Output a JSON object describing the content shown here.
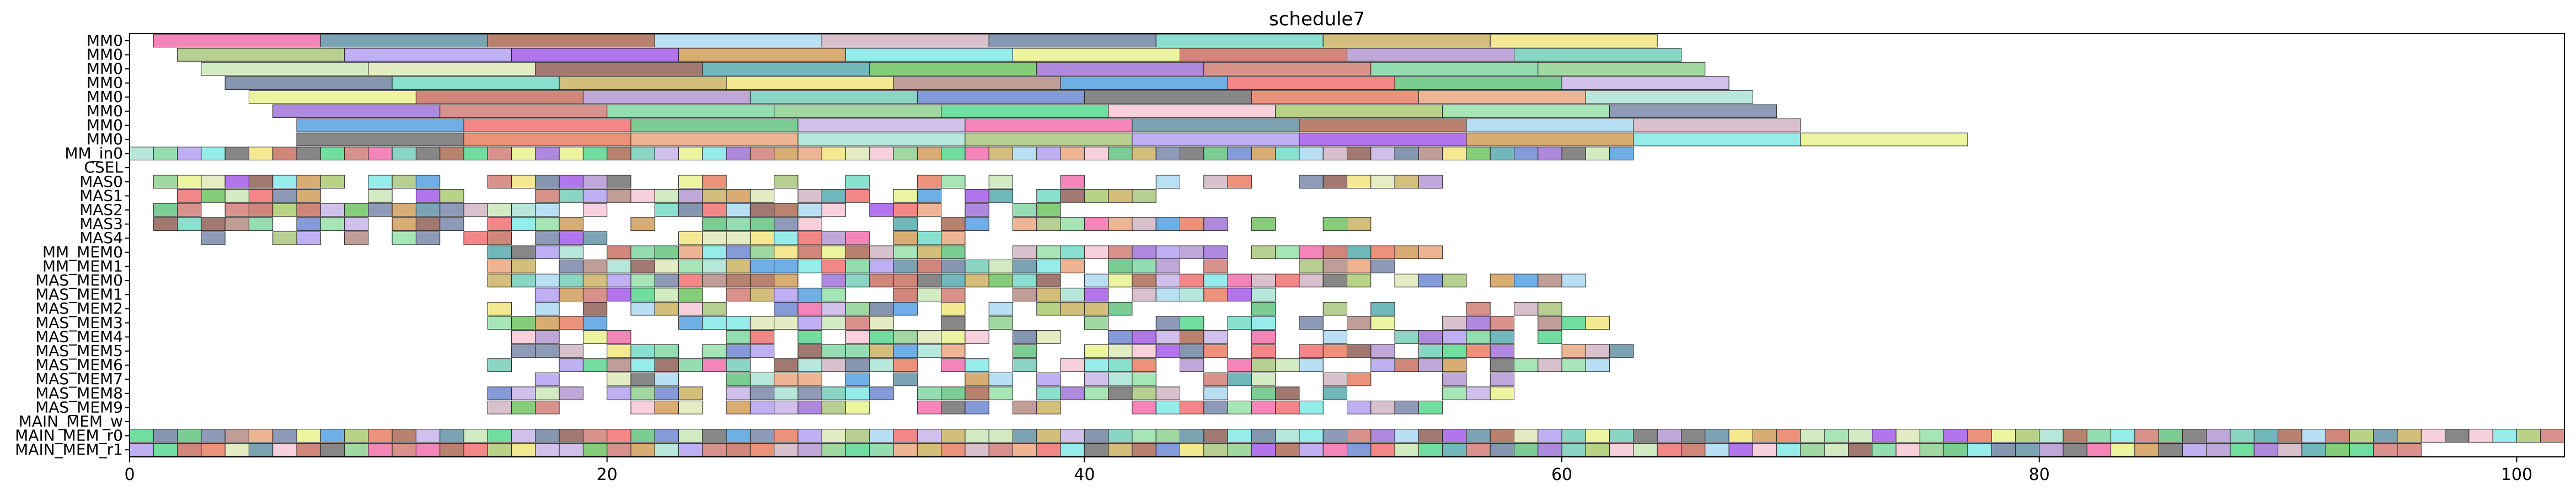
{
  "chart_data": {
    "type": "gantt",
    "title": "schedule7",
    "xlabel": "",
    "ylabel": "",
    "xlim": [
      0,
      102
    ],
    "xticks": [
      0,
      20,
      40,
      60,
      80,
      100
    ],
    "grid": false,
    "legend": "none",
    "rows": [
      "MM0",
      "MM0",
      "MM0",
      "MM0",
      "MM0",
      "MM0",
      "MM0",
      "MM0",
      "MM_in0",
      "CSEL",
      "MAS0",
      "MAS1",
      "MAS2",
      "MAS3",
      "MAS4",
      "MM_MEM0",
      "MM_MEM1",
      "MAS_MEM0",
      "MAS_MEM1",
      "MAS_MEM2",
      "MAS_MEM3",
      "MAS_MEM4",
      "MAS_MEM5",
      "MAS_MEM6",
      "MAS_MEM7",
      "MAS_MEM8",
      "MAS_MEM9",
      "MAIN_MEM_w",
      "MAIN_MEM_r0",
      "MAIN_MEM_r1"
    ],
    "mm_bars": [
      {
        "row": 0,
        "start": 1.0,
        "durations": [
          7,
          7,
          7,
          7,
          7,
          7,
          7,
          7,
          7
        ]
      },
      {
        "row": 1,
        "start": 2.0,
        "durations": [
          7,
          7,
          7,
          7,
          7,
          7,
          7,
          7,
          7
        ]
      },
      {
        "row": 2,
        "start": 3.0,
        "durations": [
          7,
          7,
          7,
          7,
          7,
          7,
          7,
          7,
          7
        ]
      },
      {
        "row": 3,
        "start": 4.0,
        "durations": [
          7,
          7,
          7,
          7,
          7,
          7,
          7,
          7,
          7
        ]
      },
      {
        "row": 4,
        "start": 5.0,
        "durations": [
          7,
          7,
          7,
          7,
          7,
          7,
          7,
          7,
          7
        ]
      },
      {
        "row": 5,
        "start": 6.0,
        "durations": [
          7,
          7,
          7,
          7,
          7,
          7,
          7,
          7,
          7
        ]
      },
      {
        "row": 6,
        "start": 7.0,
        "durations": [
          7,
          7,
          7,
          7,
          7,
          7,
          7,
          7,
          7
        ]
      },
      {
        "row": 7,
        "start": 7.0,
        "durations": [
          7,
          7,
          7,
          7,
          7,
          7,
          7,
          7,
          7,
          7
        ]
      }
    ],
    "chip_rows": [
      {
        "row": 8,
        "start": 0,
        "end": 63,
        "fill": 1.0
      },
      {
        "row": 10,
        "start": 1,
        "end": 56,
        "fill": 0.75
      },
      {
        "row": 11,
        "start": 1,
        "end": 43,
        "fill": 0.8
      },
      {
        "row": 12,
        "start": 1,
        "end": 40,
        "fill": 0.8
      },
      {
        "row": 13,
        "start": 1,
        "end": 52,
        "fill": 0.75
      },
      {
        "row": 14,
        "start": 1,
        "end": 35,
        "fill": 0.7
      },
      {
        "row": 15,
        "start": 15,
        "end": 55,
        "fill": 0.85
      },
      {
        "row": 16,
        "start": 15,
        "end": 53,
        "fill": 0.85
      },
      {
        "row": 17,
        "start": 15,
        "end": 61,
        "fill": 0.8
      },
      {
        "row": 18,
        "start": 15,
        "end": 48,
        "fill": 0.8
      },
      {
        "row": 19,
        "start": 15,
        "end": 63,
        "fill": 0.6
      },
      {
        "row": 20,
        "start": 15,
        "end": 62,
        "fill": 0.65
      },
      {
        "row": 21,
        "start": 15,
        "end": 60,
        "fill": 0.6
      },
      {
        "row": 22,
        "start": 16,
        "end": 63,
        "fill": 0.7
      },
      {
        "row": 23,
        "start": 15,
        "end": 62,
        "fill": 0.8
      },
      {
        "row": 24,
        "start": 15,
        "end": 59,
        "fill": 0.6
      },
      {
        "row": 25,
        "start": 15,
        "end": 58,
        "fill": 0.7
      },
      {
        "row": 26,
        "start": 15,
        "end": 55,
        "fill": 0.75
      },
      {
        "row": 28,
        "start": 0,
        "end": 102,
        "fill": 1.0
      },
      {
        "row": 29,
        "start": 0,
        "end": 96,
        "fill": 1.0
      }
    ],
    "palette": [
      "#f06aa8",
      "#a9c96b",
      "#a7e0d2",
      "#5f8fa3",
      "#93e1a6",
      "#a7c67a",
      "#a8674f",
      "#7585a8",
      "#b19ef0",
      "#a8d8f0",
      "#c9e6b6",
      "#a257e8",
      "#d0b2c2",
      "#dde8b5",
      "#d19a54",
      "#6a7fa0",
      "#8e5c52",
      "#7fe6e6",
      "#6fd9c4",
      "#52a8ad",
      "#e8f28a",
      "#c9b05e",
      "#6ac25a",
      "#c76b5d",
      "#f2e47a",
      "#9e6fd6",
      "#b294d1",
      "#b28880",
      "#d17a72",
      "#72ccb8",
      "#4f9de0",
      "#7cd6a0",
      "#6a84cf",
      "#f06c6c",
      "#8ccf8c",
      "#6c6c6c",
      "#5ec27d",
      "#52d68a",
      "#e87a5e",
      "#c7b2e8",
      "#f7c6d3",
      "#eaa57c"
    ]
  }
}
